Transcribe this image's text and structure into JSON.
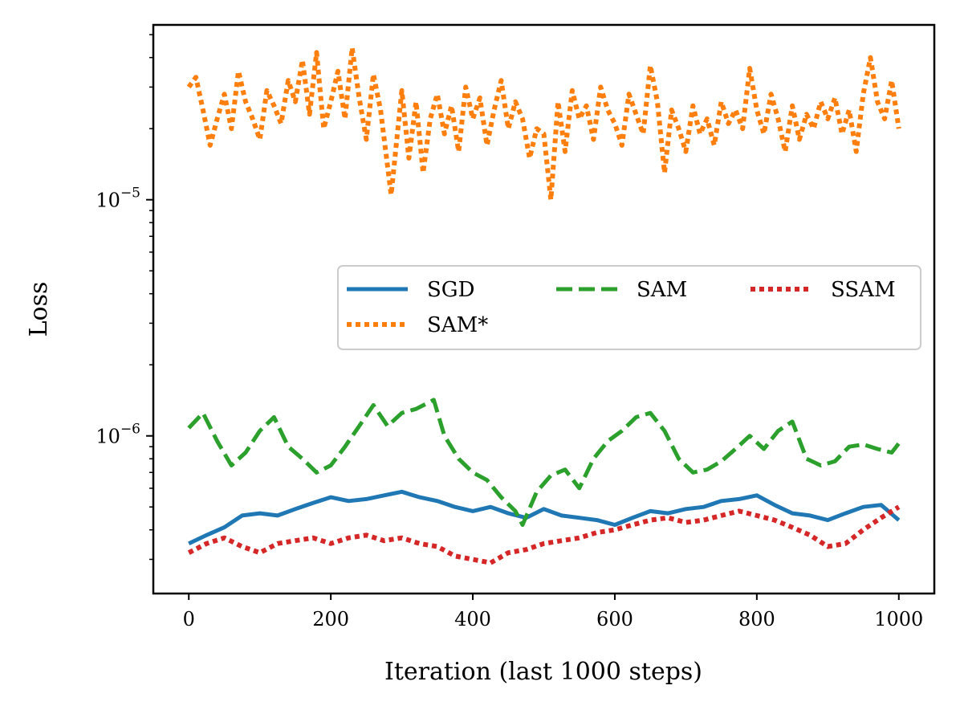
{
  "chart_data": {
    "type": "line",
    "title": "",
    "xlabel": "Iteration (last 1000 steps)",
    "ylabel": "Loss",
    "yscale": "log",
    "xlim": [
      -50,
      1050
    ],
    "ylim": [
      2.15e-07,
      5.5e-05
    ],
    "xticks": [
      0,
      200,
      400,
      600,
      800,
      1000
    ],
    "xtick_labels": [
      "0",
      "200",
      "400",
      "600",
      "800",
      "1000"
    ],
    "yticks": [
      1e-06,
      1e-05
    ],
    "ytick_labels": [
      {
        "base": "10",
        "exp": "−6"
      },
      {
        "base": "10",
        "exp": "−5"
      }
    ],
    "legend": {
      "placement": "center-right",
      "columns": 3
    },
    "series": [
      {
        "name": "SGD",
        "color": "#1f77b4",
        "style": "solid",
        "x": [
          0,
          25,
          50,
          75,
          100,
          125,
          150,
          175,
          200,
          225,
          250,
          275,
          300,
          325,
          350,
          375,
          400,
          425,
          450,
          475,
          500,
          525,
          550,
          575,
          600,
          625,
          650,
          675,
          700,
          725,
          750,
          775,
          800,
          825,
          850,
          875,
          900,
          925,
          950,
          975,
          1000
        ],
        "values": [
          3.5e-07,
          3.8e-07,
          4.1e-07,
          4.6e-07,
          4.7e-07,
          4.6e-07,
          4.9e-07,
          5.2e-07,
          5.5e-07,
          5.3e-07,
          5.4e-07,
          5.6e-07,
          5.8e-07,
          5.5e-07,
          5.3e-07,
          5e-07,
          4.8e-07,
          5e-07,
          4.7e-07,
          4.5e-07,
          4.9e-07,
          4.6e-07,
          4.5e-07,
          4.4e-07,
          4.2e-07,
          4.5e-07,
          4.8e-07,
          4.7e-07,
          4.9e-07,
          5e-07,
          5.3e-07,
          5.4e-07,
          5.6e-07,
          5.1e-07,
          4.7e-07,
          4.6e-07,
          4.4e-07,
          4.7e-07,
          5e-07,
          5.1e-07,
          4.4e-07
        ]
      },
      {
        "name": "SAM",
        "color": "#2ca02c",
        "style": "dashed",
        "x": [
          0,
          20,
          40,
          60,
          80,
          100,
          120,
          140,
          160,
          180,
          200,
          220,
          240,
          260,
          280,
          300,
          320,
          345,
          360,
          380,
          400,
          420,
          440,
          460,
          470,
          490,
          510,
          530,
          550,
          570,
          590,
          610,
          630,
          650,
          670,
          690,
          710,
          730,
          750,
          770,
          790,
          810,
          830,
          850,
          870,
          890,
          910,
          930,
          950,
          970,
          990,
          1000
        ],
        "values": [
          1.08e-06,
          1.25e-06,
          9.5e-07,
          7.5e-07,
          8.5e-07,
          1.05e-06,
          1.2e-06,
          9e-07,
          8e-07,
          7e-07,
          7.5e-07,
          9e-07,
          1.1e-06,
          1.35e-06,
          1.1e-06,
          1.25e-06,
          1.3e-06,
          1.42e-06,
          1e-06,
          8e-07,
          7e-07,
          6.5e-07,
          5.5e-07,
          4.8e-07,
          4.2e-07,
          5.8e-07,
          6.8e-07,
          7.2e-07,
          6e-07,
          8e-07,
          9.5e-07,
          1.05e-06,
          1.2e-06,
          1.25e-06,
          1.05e-06,
          8e-07,
          7e-07,
          7.2e-07,
          7.8e-07,
          8.8e-07,
          1e-06,
          8.8e-07,
          1.05e-06,
          1.15e-06,
          8e-07,
          7.5e-07,
          7.8e-07,
          9e-07,
          9.2e-07,
          8.8e-07,
          8.5e-07,
          9.3e-07
        ]
      },
      {
        "name": "SSAM",
        "color": "#d62728",
        "style": "dotted",
        "x": [
          0,
          25,
          50,
          75,
          100,
          125,
          150,
          175,
          200,
          225,
          250,
          275,
          300,
          325,
          350,
          375,
          400,
          425,
          450,
          475,
          500,
          525,
          550,
          575,
          600,
          625,
          650,
          675,
          700,
          725,
          750,
          775,
          800,
          825,
          850,
          875,
          900,
          925,
          950,
          975,
          1000
        ],
        "values": [
          3.2e-07,
          3.5e-07,
          3.7e-07,
          3.4e-07,
          3.2e-07,
          3.5e-07,
          3.6e-07,
          3.7e-07,
          3.5e-07,
          3.7e-07,
          3.8e-07,
          3.6e-07,
          3.7e-07,
          3.5e-07,
          3.4e-07,
          3.1e-07,
          3e-07,
          2.9e-07,
          3.2e-07,
          3.3e-07,
          3.5e-07,
          3.6e-07,
          3.7e-07,
          3.9e-07,
          4e-07,
          4.2e-07,
          4.4e-07,
          4.5e-07,
          4.3e-07,
          4.4e-07,
          4.6e-07,
          4.8e-07,
          4.6e-07,
          4.4e-07,
          4.1e-07,
          3.8e-07,
          3.4e-07,
          3.5e-07,
          4e-07,
          4.5e-07,
          5e-07
        ]
      },
      {
        "name": "SAM*",
        "color": "#ff7f0e",
        "style": "dotted",
        "x": [
          0,
          10,
          20,
          30,
          40,
          50,
          60,
          70,
          80,
          90,
          100,
          110,
          120,
          130,
          140,
          150,
          160,
          170,
          180,
          190,
          200,
          210,
          220,
          230,
          240,
          250,
          260,
          270,
          285,
          300,
          310,
          320,
          330,
          340,
          350,
          360,
          370,
          380,
          390,
          400,
          410,
          420,
          430,
          440,
          450,
          460,
          470,
          480,
          490,
          500,
          510,
          520,
          530,
          540,
          550,
          560,
          570,
          580,
          590,
          600,
          610,
          620,
          630,
          640,
          650,
          660,
          670,
          680,
          690,
          700,
          710,
          720,
          730,
          740,
          750,
          760,
          770,
          780,
          790,
          800,
          810,
          820,
          830,
          840,
          850,
          860,
          870,
          880,
          890,
          900,
          910,
          920,
          930,
          940,
          950,
          960,
          970,
          980,
          990,
          1000
        ],
        "values": [
          3e-05,
          3.3e-05,
          2.4e-05,
          1.7e-05,
          2.2e-05,
          2.8e-05,
          2e-05,
          3.5e-05,
          2.6e-05,
          2.2e-05,
          1.8e-05,
          2.9e-05,
          2.5e-05,
          2.1e-05,
          3.2e-05,
          2.6e-05,
          3.9e-05,
          2.3e-05,
          4.2e-05,
          2e-05,
          2.6e-05,
          3.5e-05,
          2.2e-05,
          4.4e-05,
          2.7e-05,
          1.8e-05,
          3.4e-05,
          2.4e-05,
          1.05e-05,
          2.9e-05,
          1.5e-05,
          2.6e-05,
          1.3e-05,
          2.2e-05,
          2.8e-05,
          1.9e-05,
          2.5e-05,
          1.6e-05,
          3e-05,
          2.2e-05,
          2.7e-05,
          1.7e-05,
          2.4e-05,
          3.2e-05,
          2e-05,
          2.6e-05,
          2.2e-05,
          1.5e-05,
          2e-05,
          1.9e-05,
          1e-05,
          2.6e-05,
          1.6e-05,
          2.9e-05,
          2.2e-05,
          2.5e-05,
          1.8e-05,
          3e-05,
          2.4e-05,
          2.1e-05,
          1.7e-05,
          2.8e-05,
          2.3e-05,
          1.9e-05,
          3.7e-05,
          2.6e-05,
          1.3e-05,
          2.4e-05,
          2e-05,
          1.6e-05,
          2.5e-05,
          1.9e-05,
          2.2e-05,
          1.7e-05,
          2.6e-05,
          2.1e-05,
          2.4e-05,
          2e-05,
          3.6e-05,
          2.4e-05,
          1.9e-05,
          2.8e-05,
          2.2e-05,
          1.6e-05,
          2.5e-05,
          1.8e-05,
          2.3e-05,
          2e-05,
          2.6e-05,
          2.2e-05,
          2.7e-05,
          1.9e-05,
          2.4e-05,
          1.6e-05,
          2.8e-05,
          4e-05,
          2.6e-05,
          2.2e-05,
          3.2e-05,
          2e-05
        ]
      }
    ]
  }
}
